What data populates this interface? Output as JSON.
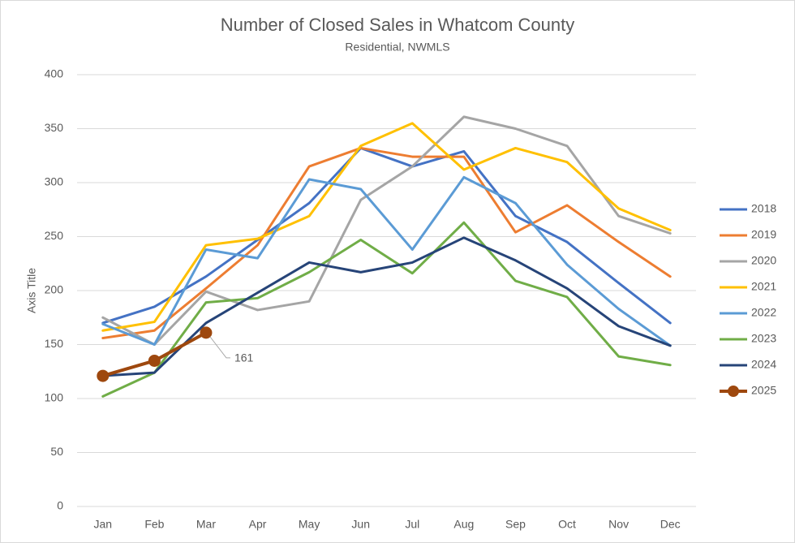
{
  "chart_data": {
    "type": "line",
    "title": "Number of Closed Sales in Whatcom County",
    "subtitle": "Residential, NWMLS",
    "y_axis_label": "Axis Title",
    "categories": [
      "Jan",
      "Feb",
      "Mar",
      "Apr",
      "May",
      "Jun",
      "Jul",
      "Aug",
      "Sep",
      "Oct",
      "Nov",
      "Dec"
    ],
    "ylim": [
      0,
      400
    ],
    "yticks": [
      0,
      50,
      100,
      150,
      200,
      250,
      300,
      350,
      400
    ],
    "grid": true,
    "legend": "right",
    "series": [
      {
        "name": "2018",
        "color": "#4472c4",
        "values": [
          170,
          185,
          213,
          247,
          281,
          332,
          315,
          329,
          269,
          245,
          207,
          170
        ]
      },
      {
        "name": "2019",
        "color": "#ed7d31",
        "values": [
          156,
          163,
          202,
          242,
          315,
          332,
          324,
          324,
          254,
          279,
          245,
          213
        ]
      },
      {
        "name": "2020",
        "color": "#a5a5a5",
        "values": [
          175,
          150,
          199,
          182,
          190,
          284,
          315,
          361,
          350,
          334,
          269,
          253
        ]
      },
      {
        "name": "2021",
        "color": "#ffc000",
        "values": [
          163,
          171,
          242,
          248,
          269,
          334,
          355,
          312,
          332,
          319,
          276,
          256
        ]
      },
      {
        "name": "2022",
        "color": "#5b9bd5",
        "values": [
          169,
          150,
          238,
          230,
          303,
          294,
          238,
          305,
          281,
          224,
          183,
          149
        ]
      },
      {
        "name": "2023",
        "color": "#70ad47",
        "values": [
          102,
          124,
          189,
          193,
          217,
          247,
          216,
          263,
          209,
          194,
          139,
          131
        ]
      },
      {
        "name": "2024",
        "color": "#264478",
        "values": [
          121,
          124,
          170,
          198,
          226,
          217,
          226,
          249,
          228,
          202,
          167,
          149
        ]
      },
      {
        "name": "2025",
        "color": "#9e480e",
        "markers": true,
        "values": [
          121,
          135,
          161,
          null,
          null,
          null,
          null,
          null,
          null,
          null,
          null,
          null
        ],
        "labeled_points": [
          2
        ]
      }
    ]
  }
}
